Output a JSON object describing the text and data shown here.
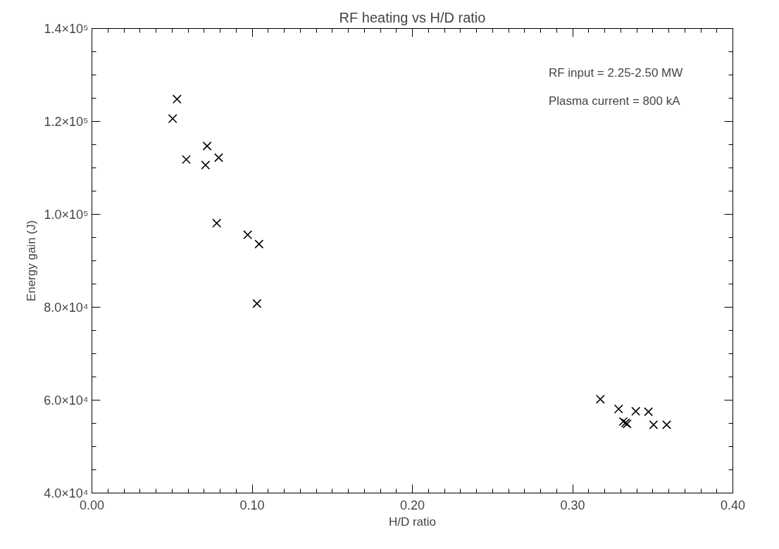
{
  "chart_data": {
    "type": "scatter",
    "title": "RF heating vs H/D ratio",
    "xlabel": "H/D ratio",
    "ylabel": "Energy gain (J)",
    "x": [
      0.0531,
      0.0504,
      0.0589,
      0.0719,
      0.0709,
      0.0791,
      0.0779,
      0.0972,
      0.1043,
      0.103,
      0.3173,
      0.3287,
      0.3394,
      0.3473,
      0.3316,
      0.333,
      0.334,
      0.3505,
      0.3587
    ],
    "series": [
      {
        "color": "#000000",
        "values": [
          124800,
          120600,
          111800,
          114700,
          110600,
          112200,
          98100,
          95600,
          93600,
          80800,
          60200,
          58100,
          57600,
          57500,
          55400,
          55100,
          54900,
          54700,
          54700
        ]
      }
    ],
    "xlim": [
      0,
      0.4
    ],
    "ylim": [
      40000,
      140000
    ],
    "xticks": [
      {
        "value": 0,
        "label": "0.00"
      },
      {
        "value": 0.1,
        "label": "0.10"
      },
      {
        "value": 0.2,
        "label": "0.20"
      },
      {
        "value": 0.3,
        "label": "0.30"
      },
      {
        "value": 0.4,
        "label": "0.40"
      }
    ],
    "yticks": [
      {
        "value": 40000,
        "label": "4.0×10⁴"
      },
      {
        "value": 60000,
        "label": "6.0×10⁴"
      },
      {
        "value": 80000,
        "label": "8.0×10⁴"
      },
      {
        "value": 100000,
        "label": "1.0×10⁵"
      },
      {
        "value": 120000,
        "label": "1.2×10⁵"
      },
      {
        "value": 140000,
        "label": "1.4×10⁵"
      }
    ],
    "annotations": [
      "RF input = 2.25-2.50 MW",
      "Plasma current = 800 kA"
    ],
    "marker": "cross",
    "grid": false
  }
}
